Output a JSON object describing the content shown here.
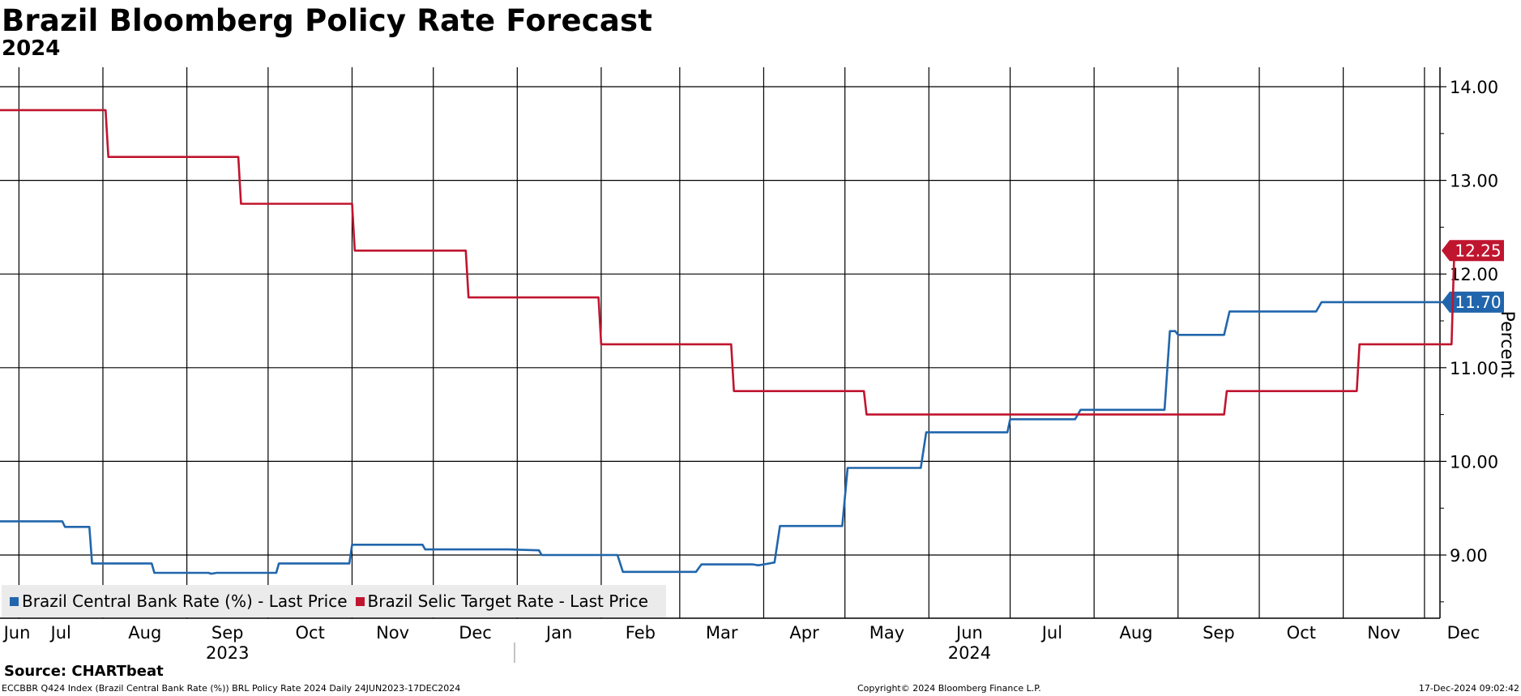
{
  "header": {
    "title": "Brazil Bloomberg Policy Rate Forecast",
    "subtitle": "2024"
  },
  "legend": {
    "items": [
      {
        "label": "Brazil Central Bank Rate (%) - Last Price",
        "color": "#2166ac"
      },
      {
        "label": "Brazil Selic Target Rate - Last Price",
        "color": "#c0152f"
      }
    ]
  },
  "footer": {
    "source": "Source: CHARTbeat",
    "index_info": "ECCBBR Q424 Index (Brazil Central Bank Rate (%)) BRL Policy Rate 2024  Daily 24JUN2023-17DEC2024",
    "copyright": "Copyright© 2024 Bloomberg Finance L.P.",
    "timestamp": "17-Dec-2024 09:02:42"
  },
  "chart_data": {
    "type": "line",
    "title": "Brazil Bloomberg Policy Rate Forecast",
    "subtitle": "2024",
    "ylabel": "Percent",
    "ylim": [
      8.35,
      14.2
    ],
    "x_range": [
      "2023-06-24",
      "2024-12-17"
    ],
    "yticks": [
      "9.00",
      "10.00",
      "11.00",
      "12.00",
      "13.00",
      "14.00"
    ],
    "month_ticks": [
      {
        "label": "Jun",
        "date": "2023-06-24"
      },
      {
        "label": "Jul",
        "date": "2023-07-01"
      },
      {
        "label": "Aug",
        "date": "2023-08-01"
      },
      {
        "label": "Sep",
        "date": "2023-09-01"
      },
      {
        "label": "Oct",
        "date": "2023-10-01"
      },
      {
        "label": "Nov",
        "date": "2023-11-01"
      },
      {
        "label": "Dec",
        "date": "2023-12-01"
      },
      {
        "label": "Jan",
        "date": "2024-01-01"
      },
      {
        "label": "Feb",
        "date": "2024-02-01"
      },
      {
        "label": "Mar",
        "date": "2024-03-01"
      },
      {
        "label": "Apr",
        "date": "2024-04-01"
      },
      {
        "label": "May",
        "date": "2024-05-01"
      },
      {
        "label": "Jun",
        "date": "2024-06-01"
      },
      {
        "label": "Jul",
        "date": "2024-07-01"
      },
      {
        "label": "Aug",
        "date": "2024-08-01"
      },
      {
        "label": "Sep",
        "date": "2024-09-01"
      },
      {
        "label": "Oct",
        "date": "2024-10-01"
      },
      {
        "label": "Nov",
        "date": "2024-11-01"
      },
      {
        "label": "Dec",
        "date": "2024-12-01"
      }
    ],
    "year_labels": [
      {
        "label": "2023",
        "date": "2023-09-16"
      },
      {
        "label": "2024",
        "date": "2024-06-16"
      }
    ],
    "year_divider": "2023-12-31",
    "grid": true,
    "legend_position": "bottom-left",
    "series": [
      {
        "name": "Brazil Central Bank Rate (%) - Last Price",
        "color": "#2166ac",
        "last_label": "11.70",
        "points": [
          [
            "2023-06-24",
            9.36
          ],
          [
            "2023-07-17",
            9.36
          ],
          [
            "2023-07-18",
            9.3
          ],
          [
            "2023-07-27",
            9.3
          ],
          [
            "2023-07-28",
            8.91
          ],
          [
            "2023-08-19",
            8.91
          ],
          [
            "2023-08-20",
            8.81
          ],
          [
            "2023-09-09",
            8.81
          ],
          [
            "2023-09-10",
            8.8
          ],
          [
            "2023-09-12",
            8.81
          ],
          [
            "2023-09-25",
            8.81
          ],
          [
            "2023-10-04",
            8.81
          ],
          [
            "2023-10-05",
            8.91
          ],
          [
            "2023-10-21",
            8.91
          ],
          [
            "2023-10-22",
            8.91
          ],
          [
            "2023-10-31",
            8.91
          ],
          [
            "2023-11-01",
            9.11
          ],
          [
            "2023-11-27",
            9.11
          ],
          [
            "2023-11-28",
            9.06
          ],
          [
            "2023-12-06",
            9.06
          ],
          [
            "2023-12-29",
            9.06
          ],
          [
            "2024-01-09",
            9.05
          ],
          [
            "2024-01-10",
            9.0
          ],
          [
            "2024-01-31",
            9.0
          ],
          [
            "2024-02-07",
            9.0
          ],
          [
            "2024-02-09",
            8.82
          ],
          [
            "2024-03-07",
            8.82
          ],
          [
            "2024-03-09",
            8.9
          ],
          [
            "2024-03-28",
            8.9
          ],
          [
            "2024-03-30",
            8.89
          ],
          [
            "2024-04-01",
            8.9
          ],
          [
            "2024-04-05",
            8.92
          ],
          [
            "2024-04-07",
            9.31
          ],
          [
            "2024-04-30",
            9.31
          ],
          [
            "2024-05-02",
            9.93
          ],
          [
            "2024-05-29",
            9.93
          ],
          [
            "2024-05-31",
            10.31
          ],
          [
            "2024-06-30",
            10.31
          ],
          [
            "2024-07-01",
            10.45
          ],
          [
            "2024-07-25",
            10.45
          ],
          [
            "2024-07-27",
            10.55
          ],
          [
            "2024-08-27",
            10.55
          ],
          [
            "2024-08-29",
            11.39
          ],
          [
            "2024-08-31",
            11.39
          ],
          [
            "2024-09-01",
            11.35
          ],
          [
            "2024-09-18",
            11.35
          ],
          [
            "2024-09-20",
            11.6
          ],
          [
            "2024-10-22",
            11.6
          ],
          [
            "2024-10-24",
            11.7
          ],
          [
            "2024-11-12",
            11.7
          ],
          [
            "2024-12-17",
            11.7
          ]
        ]
      },
      {
        "name": "Brazil Selic Target Rate - Last Price",
        "color": "#c0152f",
        "last_label": "12.25",
        "points": [
          [
            "2023-06-24",
            13.75
          ],
          [
            "2023-08-02",
            13.75
          ],
          [
            "2023-08-03",
            13.25
          ],
          [
            "2023-09-20",
            13.25
          ],
          [
            "2023-09-21",
            12.75
          ],
          [
            "2023-11-01",
            12.75
          ],
          [
            "2023-11-02",
            12.25
          ],
          [
            "2023-12-13",
            12.25
          ],
          [
            "2023-12-14",
            11.75
          ],
          [
            "2024-01-31",
            11.75
          ],
          [
            "2024-02-01",
            11.25
          ],
          [
            "2024-03-20",
            11.25
          ],
          [
            "2024-03-21",
            10.75
          ],
          [
            "2024-05-08",
            10.75
          ],
          [
            "2024-05-09",
            10.5
          ],
          [
            "2024-09-18",
            10.5
          ],
          [
            "2024-09-19",
            10.75
          ],
          [
            "2024-11-06",
            10.75
          ],
          [
            "2024-11-07",
            11.25
          ],
          [
            "2024-12-11",
            11.25
          ],
          [
            "2024-12-12",
            12.25
          ],
          [
            "2024-12-17",
            12.25
          ]
        ]
      }
    ]
  }
}
